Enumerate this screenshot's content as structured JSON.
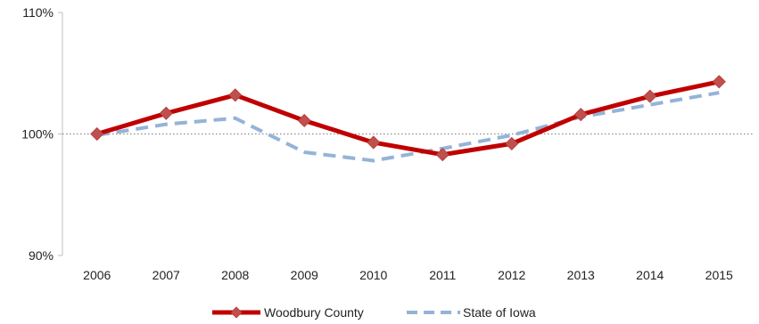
{
  "chart_data": {
    "type": "line",
    "title": "",
    "xlabel": "",
    "ylabel": "",
    "categories": [
      "2006",
      "2007",
      "2008",
      "2009",
      "2010",
      "2011",
      "2012",
      "2013",
      "2014",
      "2015"
    ],
    "ylim": [
      90,
      110
    ],
    "y_ticks": [
      90,
      100,
      110
    ],
    "y_tick_labels": [
      "90%",
      "100%",
      "110%"
    ],
    "reference_line": 100,
    "grid": false,
    "legend_position": "bottom",
    "series": [
      {
        "name": "Woodbury County",
        "values": [
          100.0,
          101.7,
          103.2,
          101.1,
          99.3,
          98.3,
          99.2,
          101.6,
          103.1,
          104.3
        ],
        "color": "#c00000",
        "marker": "diamond",
        "marker_color": "#c0504d",
        "style": "solid"
      },
      {
        "name": "State of Iowa",
        "values": [
          99.9,
          100.8,
          101.3,
          98.5,
          97.8,
          98.8,
          99.9,
          101.4,
          102.4,
          103.4
        ],
        "color": "#95b3d7",
        "marker": "none",
        "style": "dashed"
      }
    ]
  }
}
